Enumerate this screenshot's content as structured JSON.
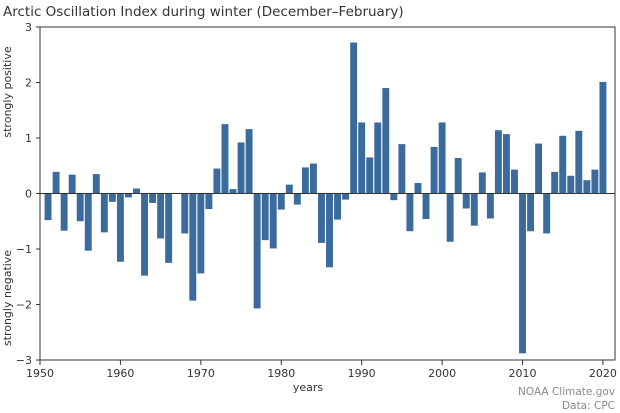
{
  "chart_data": {
    "type": "bar",
    "title": "Arctic Oscillation Index during winter (December–February)",
    "xlabel": "years",
    "ylabel_positive": "strongly positive",
    "ylabel_negative": "strongly negative",
    "ylim": [
      -3,
      3
    ],
    "xlim": [
      1950,
      2021.5
    ],
    "x_ticks": [
      1950,
      1960,
      1970,
      1980,
      1990,
      2000,
      2010,
      2020
    ],
    "y_ticks": [
      -3,
      -2,
      -1,
      0,
      1,
      2,
      3
    ],
    "bar_color": "#3a6b9c",
    "series": [
      {
        "x": [
          1951,
          1952,
          1953,
          1954,
          1955,
          1956,
          1957,
          1958,
          1959,
          1960,
          1961,
          1962,
          1963,
          1964,
          1965,
          1966,
          1967,
          1968,
          1969,
          1970,
          1971,
          1972,
          1973,
          1974,
          1975,
          1976,
          1977,
          1978,
          1979,
          1980,
          1981,
          1982,
          1983,
          1984,
          1985,
          1986,
          1987,
          1988,
          1989,
          1990,
          1991,
          1992,
          1993,
          1994,
          1995,
          1996,
          1997,
          1998,
          1999,
          2000,
          2001,
          2002,
          2003,
          2004,
          2005,
          2006,
          2007,
          2008,
          2009,
          2010,
          2011,
          2012,
          2013,
          2014,
          2015,
          2016,
          2017,
          2018,
          2019,
          2020
        ],
        "values": [
          -0.48,
          0.39,
          -0.67,
          0.34,
          -0.5,
          -1.03,
          0.35,
          -0.7,
          -0.15,
          -1.23,
          -0.07,
          0.09,
          -1.48,
          -0.17,
          -0.81,
          -1.25,
          0.01,
          -0.72,
          -1.93,
          -1.44,
          -0.28,
          0.45,
          1.25,
          0.08,
          0.92,
          1.16,
          -2.07,
          -0.84,
          -0.99,
          -0.29,
          0.16,
          -0.2,
          0.47,
          0.54,
          -0.89,
          -1.33,
          -0.47,
          -0.11,
          2.72,
          1.28,
          0.65,
          1.28,
          1.9,
          -0.12,
          0.89,
          -0.68,
          0.19,
          -0.46,
          0.84,
          1.28,
          -0.87,
          0.64,
          -0.27,
          -0.58,
          0.38,
          -0.45,
          1.14,
          1.07,
          0.43,
          -2.88,
          -0.68,
          0.9,
          -0.72,
          0.39,
          1.04,
          0.32,
          1.13,
          0.24,
          0.43,
          2.01
        ]
      }
    ]
  },
  "credits": {
    "line1": "NOAA Climate.gov",
    "line2": "Data: CPC"
  }
}
